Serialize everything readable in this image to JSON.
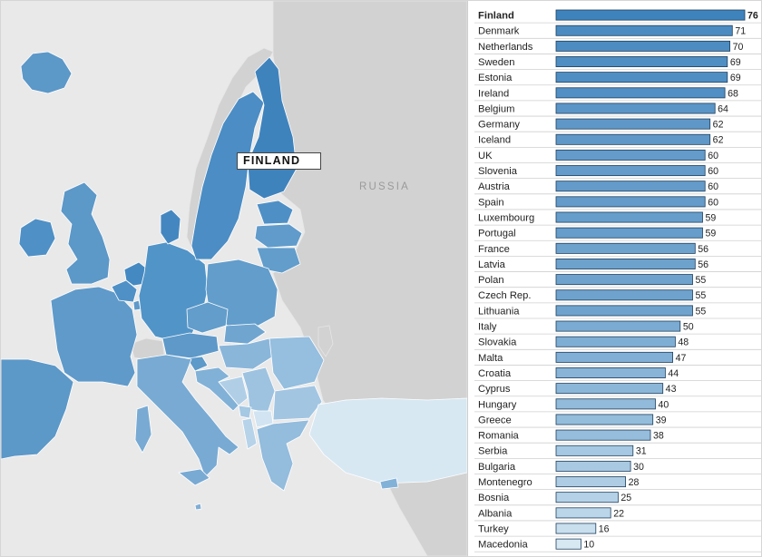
{
  "map": {
    "callout_label": "FINLAND",
    "region_label": "RUSSIA"
  },
  "colors": {
    "sea": "#e9e9e9",
    "non_member_land": "#d2d2d2",
    "darkest": "#3f83bd",
    "lightest": "#d7e8f3",
    "bar_outline": "#1f3f5c"
  },
  "chart_data": {
    "type": "bar",
    "orientation": "horizontal",
    "highlight": "Finland",
    "categories": [
      "Finland",
      "Denmark",
      "Netherlands",
      "Sweden",
      "Estonia",
      "Ireland",
      "Belgium",
      "Germany",
      "Iceland",
      "UK",
      "Slovenia",
      "Austria",
      "Spain",
      "Luxembourg",
      "Portugal",
      "France",
      "Latvia",
      "Polan",
      "Czech Rep.",
      "Lithuania",
      "Italy",
      "Slovakia",
      "Malta",
      "Croatia",
      "Cyprus",
      "Hungary",
      "Greece",
      "Romania",
      "Serbia",
      "Bulgaria",
      "Montenegro",
      "Bosnia",
      "Albania",
      "Turkey",
      "Macedonia"
    ],
    "values": [
      76,
      71,
      70,
      69,
      69,
      68,
      64,
      62,
      62,
      60,
      60,
      60,
      60,
      59,
      59,
      56,
      56,
      55,
      55,
      55,
      50,
      48,
      47,
      44,
      43,
      40,
      39,
      38,
      31,
      30,
      28,
      25,
      22,
      16,
      10
    ],
    "title": "",
    "xlabel": "",
    "ylabel": "",
    "xlim": [
      0,
      76
    ]
  }
}
